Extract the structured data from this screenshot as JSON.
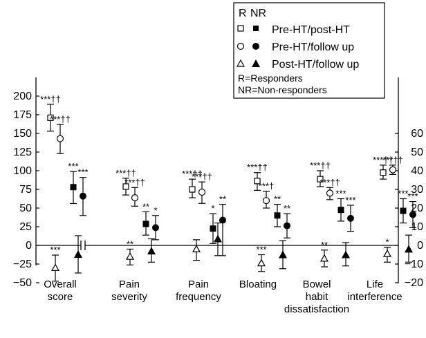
{
  "chart_data": {
    "type": "scatter",
    "title": "",
    "xlabel": "",
    "ylabel": "",
    "left_axis": {
      "ylim": [
        -50,
        200
      ],
      "ticks": [
        "200",
        "175",
        "150",
        "125",
        "100",
        "75",
        "50",
        "25",
        "0",
        "−25",
        "−50"
      ]
    },
    "right_axis": {
      "ylim": [
        -20,
        60
      ],
      "ticks": [
        "60",
        "50",
        "40",
        "30",
        "20",
        "10",
        "0",
        "−10",
        "−20"
      ]
    },
    "categories": [
      {
        "lines": [
          "Overall",
          "score"
        ],
        "axis": "left"
      },
      {
        "lines": [
          "Pain",
          "severity"
        ],
        "axis": "right"
      },
      {
        "lines": [
          "Pain",
          "frequency"
        ],
        "axis": "right"
      },
      {
        "lines": [
          "Bloating"
        ],
        "axis": "right"
      },
      {
        "lines": [
          "Bowel",
          "habit",
          "dissatisfaction"
        ],
        "axis": "right"
      },
      {
        "lines": [
          "Life",
          "interference"
        ],
        "axis": "right"
      }
    ],
    "legend": {
      "header": [
        "R",
        "NR"
      ],
      "entries": [
        "Pre-HT/post-HT",
        "Pre-HT/follow up",
        "Post-HT/follow up"
      ],
      "notes": [
        "R=Responders",
        "NR=Non-responders"
      ]
    },
    "series": [
      {
        "group": "Pre-HT/post-HT",
        "subgroup": "R",
        "marker": "open-square",
        "points": [
          {
            "mean": 171,
            "lo": 153,
            "hi": 189,
            "label": "***††"
          },
          {
            "mean": 31.5,
            "lo": 27,
            "hi": 36,
            "label": "***††"
          },
          {
            "mean": 30,
            "lo": 25.5,
            "hi": 35.5,
            "label": "***††"
          },
          {
            "mean": 34.5,
            "lo": 29.5,
            "hi": 39,
            "label": "***††"
          },
          {
            "mean": 35.5,
            "lo": 31.5,
            "hi": 40,
            "label": "***††"
          },
          {
            "mean": 39,
            "lo": 35.5,
            "hi": 43,
            "label": "***††"
          }
        ]
      },
      {
        "group": "Pre-HT/follow up",
        "subgroup": "R",
        "marker": "open-circle",
        "points": [
          {
            "mean": 143,
            "lo": 123,
            "hi": 162,
            "label": "***††"
          },
          {
            "mean": 25.5,
            "lo": 21,
            "hi": 31,
            "label": "***††"
          },
          {
            "mean": 28.5,
            "lo": 22.5,
            "hi": 34,
            "label": "***††"
          },
          {
            "mean": 24,
            "lo": 20,
            "hi": 29,
            "label": "***†"
          },
          {
            "mean": 28,
            "lo": 24.5,
            "hi": 31,
            "label": "***††"
          },
          {
            "mean": 40.5,
            "lo": 38,
            "hi": 43,
            "label": "***††"
          }
        ]
      },
      {
        "group": "Pre-HT/post-HT",
        "subgroup": "NR",
        "marker": "filled-square",
        "points": [
          {
            "mean": 78,
            "lo": 56,
            "hi": 99,
            "label": "***"
          },
          {
            "mean": 11.5,
            "lo": 5.5,
            "hi": 18,
            "label": "**"
          },
          {
            "mean": 9,
            "lo": 1,
            "hi": 17,
            "label": "*"
          },
          {
            "mean": 16,
            "lo": 10,
            "hi": 22,
            "label": "**"
          },
          {
            "mean": 19,
            "lo": 13,
            "hi": 25,
            "label": "***"
          },
          {
            "mean": 18.5,
            "lo": 12,
            "hi": 25,
            "label": "***"
          }
        ]
      },
      {
        "group": "Pre-HT/follow up",
        "subgroup": "NR",
        "marker": "filled-circle",
        "points": [
          {
            "mean": 66,
            "lo": 40,
            "hi": 91,
            "label": "***"
          },
          {
            "mean": 9.5,
            "lo": 3,
            "hi": 16,
            "label": "*"
          },
          {
            "mean": 13.5,
            "lo": -5.5,
            "hi": 22,
            "label": "**"
          },
          {
            "mean": 10.5,
            "lo": 4,
            "hi": 17,
            "label": "**"
          },
          {
            "mean": 14.5,
            "lo": 7.5,
            "hi": 21.5,
            "label": "***"
          },
          {
            "mean": 16.5,
            "lo": 9.5,
            "hi": 23.5,
            "label": "***"
          }
        ]
      },
      {
        "group": "Post-HT/follow up",
        "subgroup": "R",
        "marker": "open-triangle",
        "points": [
          {
            "mean": -30,
            "lo": -48,
            "hi": -13,
            "label": "***"
          },
          {
            "mean": -6,
            "lo": -10.5,
            "hi": -2,
            "label": "**"
          },
          {
            "mean": -2,
            "lo": -8,
            "hi": 3,
            "label": ""
          },
          {
            "mean": -9.5,
            "lo": -14,
            "hi": -5,
            "label": "***"
          },
          {
            "mean": -7,
            "lo": -11.5,
            "hi": -2.5,
            "label": "**"
          },
          {
            "mean": -4.5,
            "lo": -9,
            "hi": -1,
            "label": "*"
          }
        ]
      },
      {
        "group": "Post-HT/follow up",
        "subgroup": "NR",
        "marker": "filled-triangle",
        "points": [
          {
            "mean": -12,
            "lo": -37,
            "hi": 13,
            "label": ""
          },
          {
            "mean": -3,
            "lo": -9,
            "hi": 3.5,
            "label": ""
          },
          {
            "mean": 3.5,
            "lo": -5.5,
            "hi": 12,
            "label": ""
          },
          {
            "mean": -5,
            "lo": -12.5,
            "hi": 2.5,
            "label": ""
          },
          {
            "mean": -5,
            "lo": -11,
            "hi": 1.5,
            "label": ""
          },
          {
            "mean": -2,
            "lo": -9,
            "hi": 5.5,
            "label": ""
          }
        ]
      }
    ]
  },
  "colors": {
    "ink": "#000000",
    "background": "#ffffff"
  }
}
